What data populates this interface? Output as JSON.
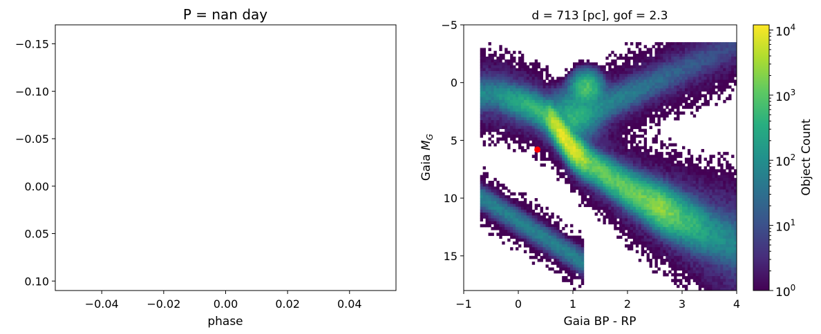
{
  "chart_data": [
    {
      "type": "line",
      "title": "P = nan day",
      "xlabel": "phase",
      "ylabel": "",
      "xlim": [
        -0.055,
        0.055
      ],
      "ylim": [
        0.11,
        -0.17
      ],
      "y_inverted": true,
      "xticks": [
        -0.04,
        -0.02,
        0.0,
        0.02,
        0.04
      ],
      "xtick_labels": [
        "−0.04",
        "−0.02",
        "0.00",
        "0.02",
        "0.04"
      ],
      "yticks": [
        -0.15,
        -0.1,
        -0.05,
        0.0,
        0.05,
        0.1
      ],
      "ytick_labels": [
        "−0.15",
        "−0.10",
        "−0.05",
        "0.00",
        "0.05",
        "0.10"
      ],
      "series": []
    },
    {
      "type": "heatmap",
      "title": "d = 713 [pc], gof = 2.3",
      "xlabel": "Gaia BP - RP",
      "ylabel_text": "Gaia ",
      "ylabel_symbol": "M",
      "ylabel_subscript": "G",
      "xlim": [
        -1,
        4
      ],
      "ylim": [
        18,
        -5
      ],
      "y_inverted": true,
      "xticks": [
        -1,
        0,
        1,
        2,
        3,
        4
      ],
      "xtick_labels": [
        "−1",
        "0",
        "1",
        "2",
        "3",
        "4"
      ],
      "yticks": [
        -5,
        0,
        5,
        10,
        15
      ],
      "ytick_labels": [
        "−5",
        "0",
        "5",
        "10",
        "15"
      ],
      "colorscale": "viridis",
      "log_color": true,
      "clim": [
        1,
        12000
      ],
      "colorbar_label": "Object Count",
      "colorbar_tick_values": [
        1,
        10,
        100,
        1000,
        10000
      ],
      "colorbar_ticks": [
        {
          "base": "10",
          "exp": "0"
        },
        {
          "base": "10",
          "exp": "1"
        },
        {
          "base": "10",
          "exp": "2"
        },
        {
          "base": "10",
          "exp": "3"
        },
        {
          "base": "10",
          "exp": "4"
        }
      ],
      "highlight_point": {
        "x": 0.35,
        "y": 5.8,
        "color": "#ff0000"
      }
    }
  ]
}
